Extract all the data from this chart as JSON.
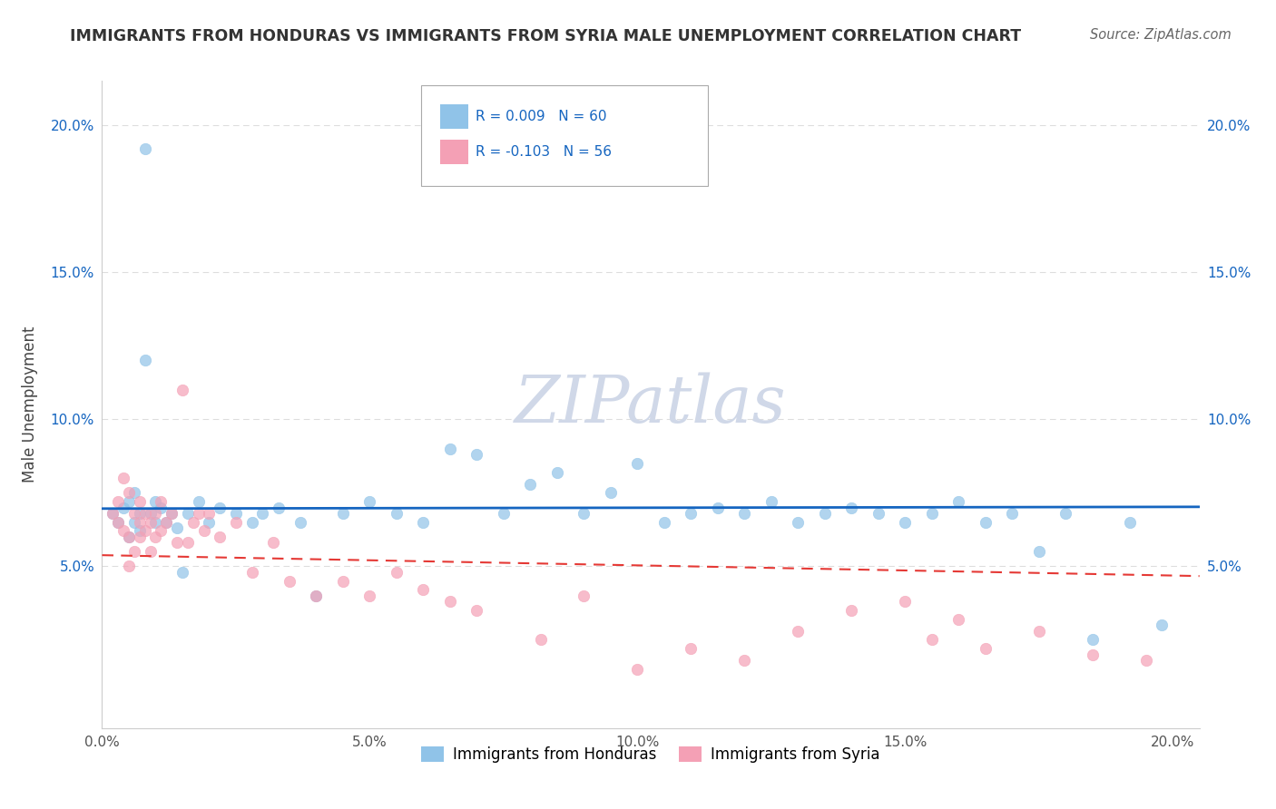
{
  "title": "IMMIGRANTS FROM HONDURAS VS IMMIGRANTS FROM SYRIA MALE UNEMPLOYMENT CORRELATION CHART",
  "source": "Source: ZipAtlas.com",
  "ylabel": "Male Unemployment",
  "xlim": [
    0.0,
    0.205
  ],
  "ylim": [
    -0.005,
    0.215
  ],
  "yticks": [
    0.05,
    0.1,
    0.15,
    0.2
  ],
  "ytick_labels": [
    "5.0%",
    "10.0%",
    "15.0%",
    "20.0%"
  ],
  "xticks": [
    0.0,
    0.05,
    0.1,
    0.15,
    0.2
  ],
  "xtick_labels": [
    "0.0%",
    "5.0%",
    "10.0%",
    "15.0%",
    "20.0%"
  ],
  "honduras_color": "#90C3E8",
  "syria_color": "#F4A0B5",
  "honduras_R": 0.009,
  "honduras_N": 60,
  "syria_R": -0.103,
  "syria_N": 56,
  "legend_label_honduras": "Immigrants from Honduras",
  "legend_label_syria": "Immigrants from Syria",
  "title_color": "#333333",
  "source_color": "#666666",
  "axis_color": "#cccccc",
  "grid_color": "#dddddd",
  "trend_line_color_honduras": "#1565C0",
  "trend_line_color_syria": "#E53935",
  "tick_label_color": "#1565C0",
  "honduras_scatter_x": [
    0.002,
    0.003,
    0.004,
    0.005,
    0.005,
    0.006,
    0.006,
    0.007,
    0.007,
    0.008,
    0.008,
    0.009,
    0.01,
    0.01,
    0.011,
    0.012,
    0.013,
    0.014,
    0.015,
    0.016,
    0.018,
    0.02,
    0.022,
    0.025,
    0.028,
    0.03,
    0.033,
    0.037,
    0.04,
    0.045,
    0.05,
    0.055,
    0.06,
    0.065,
    0.07,
    0.075,
    0.08,
    0.085,
    0.09,
    0.095,
    0.1,
    0.105,
    0.11,
    0.115,
    0.12,
    0.125,
    0.13,
    0.135,
    0.14,
    0.145,
    0.15,
    0.155,
    0.16,
    0.165,
    0.17,
    0.175,
    0.18,
    0.185,
    0.192,
    0.198
  ],
  "honduras_scatter_y": [
    0.068,
    0.065,
    0.07,
    0.072,
    0.06,
    0.075,
    0.065,
    0.068,
    0.062,
    0.192,
    0.12,
    0.068,
    0.065,
    0.072,
    0.07,
    0.065,
    0.068,
    0.063,
    0.048,
    0.068,
    0.072,
    0.065,
    0.07,
    0.068,
    0.065,
    0.068,
    0.07,
    0.065,
    0.04,
    0.068,
    0.072,
    0.068,
    0.065,
    0.09,
    0.088,
    0.068,
    0.078,
    0.082,
    0.068,
    0.075,
    0.085,
    0.065,
    0.068,
    0.07,
    0.068,
    0.072,
    0.065,
    0.068,
    0.07,
    0.068,
    0.065,
    0.068,
    0.072,
    0.065,
    0.068,
    0.055,
    0.068,
    0.025,
    0.065,
    0.03
  ],
  "syria_scatter_x": [
    0.002,
    0.003,
    0.003,
    0.004,
    0.004,
    0.005,
    0.005,
    0.005,
    0.006,
    0.006,
    0.007,
    0.007,
    0.007,
    0.008,
    0.008,
    0.009,
    0.009,
    0.01,
    0.01,
    0.011,
    0.011,
    0.012,
    0.013,
    0.014,
    0.015,
    0.016,
    0.017,
    0.018,
    0.019,
    0.02,
    0.022,
    0.025,
    0.028,
    0.032,
    0.035,
    0.04,
    0.045,
    0.05,
    0.055,
    0.06,
    0.065,
    0.07,
    0.082,
    0.09,
    0.1,
    0.11,
    0.12,
    0.13,
    0.14,
    0.15,
    0.155,
    0.16,
    0.165,
    0.175,
    0.185,
    0.195
  ],
  "syria_scatter_y": [
    0.068,
    0.065,
    0.072,
    0.062,
    0.08,
    0.06,
    0.075,
    0.05,
    0.068,
    0.055,
    0.065,
    0.06,
    0.072,
    0.062,
    0.068,
    0.055,
    0.065,
    0.06,
    0.068,
    0.062,
    0.072,
    0.065,
    0.068,
    0.058,
    0.11,
    0.058,
    0.065,
    0.068,
    0.062,
    0.068,
    0.06,
    0.065,
    0.048,
    0.058,
    0.045,
    0.04,
    0.045,
    0.04,
    0.048,
    0.042,
    0.038,
    0.035,
    0.025,
    0.04,
    0.015,
    0.022,
    0.018,
    0.028,
    0.035,
    0.038,
    0.025,
    0.032,
    0.022,
    0.028,
    0.02,
    0.018
  ]
}
